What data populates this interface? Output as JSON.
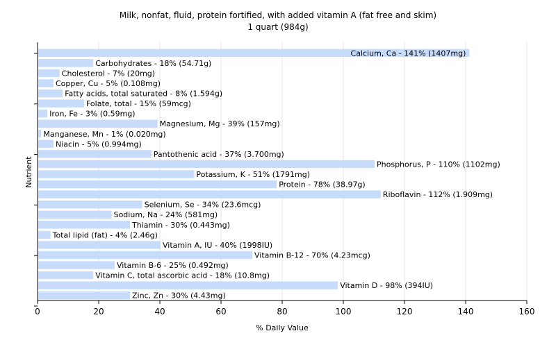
{
  "chart_data": {
    "type": "bar",
    "orientation": "horizontal",
    "title": "Milk, nonfat, fluid, protein fortified, with added vitamin A (fat free and skim)",
    "subtitle": "1 quart (984g)",
    "xlabel": "% Daily Value",
    "ylabel": "Nutrient",
    "xlim": [
      0,
      160
    ],
    "xticks": [
      0,
      20,
      40,
      60,
      80,
      100,
      120,
      140,
      160
    ],
    "grid": true,
    "bar_color": "#c6dcfa",
    "categories": [
      "Calcium, Ca",
      "Carbohydrates",
      "Cholesterol",
      "Copper, Cu",
      "Fatty acids, total saturated",
      "Folate, total",
      "Iron, Fe",
      "Magnesium, Mg",
      "Manganese, Mn",
      "Niacin",
      "Pantothenic acid",
      "Phosphorus, P",
      "Potassium, K",
      "Protein",
      "Riboflavin",
      "Selenium, Se",
      "Sodium, Na",
      "Thiamin",
      "Total lipid (fat)",
      "Vitamin A, IU",
      "Vitamin B-12",
      "Vitamin B-6",
      "Vitamin C, total ascorbic acid",
      "Vitamin D",
      "Zinc, Zn"
    ],
    "values": [
      141,
      18,
      7,
      5,
      8,
      15,
      3,
      39,
      1,
      5,
      37,
      110,
      51,
      78,
      112,
      34,
      24,
      30,
      4,
      40,
      70,
      25,
      18,
      98,
      30
    ],
    "labels": [
      "Calcium, Ca - 141% (1407mg)",
      "Carbohydrates - 18% (54.71g)",
      "Cholesterol - 7% (20mg)",
      "Copper, Cu - 5% (0.108mg)",
      "Fatty acids, total saturated - 8% (1.594g)",
      "Folate, total - 15% (59mcg)",
      "Iron, Fe - 3% (0.59mg)",
      "Magnesium, Mg - 39% (157mg)",
      "Manganese, Mn - 1% (0.020mg)",
      "Niacin - 5% (0.994mg)",
      "Pantothenic acid - 37% (3.700mg)",
      "Phosphorus, P - 110% (1102mg)",
      "Potassium, K - 51% (1791mg)",
      "Protein - 78% (38.97g)",
      "Riboflavin - 112% (1.909mg)",
      "Selenium, Se - 34% (23.6mcg)",
      "Sodium, Na - 24% (581mg)",
      "Thiamin - 30% (0.443mg)",
      "Total lipid (fat) - 4% (2.46g)",
      "Vitamin A, IU - 40% (1998IU)",
      "Vitamin B-12 - 70% (4.23mcg)",
      "Vitamin B-6 - 25% (0.492mg)",
      "Vitamin C, total ascorbic acid - 18% (10.8mg)",
      "Vitamin D - 98% (394IU)",
      "Zinc, Zn - 30% (4.43mg)"
    ]
  }
}
